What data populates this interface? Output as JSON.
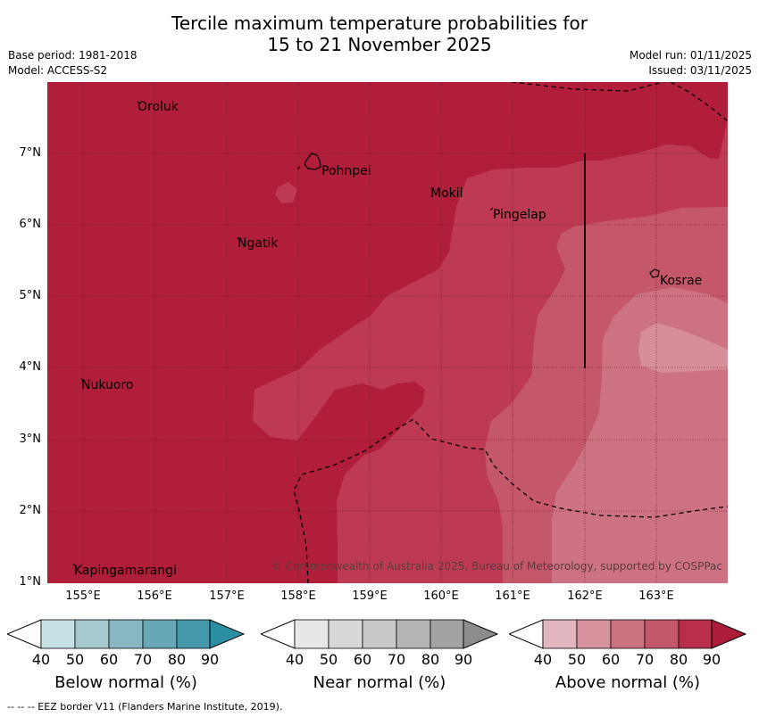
{
  "title": {
    "line1": "Tercile maximum temperature probabilities for",
    "line2": "15 to 21 November 2025"
  },
  "meta_left": {
    "base_period": "Base period: 1981-2018",
    "model": "Model: ACCESS-S2"
  },
  "meta_right": {
    "model_run": "Model run: 01/11/2025",
    "issued": "Issued: 03/11/2025"
  },
  "map": {
    "x_ticks": [
      "155°E",
      "156°E",
      "157°E",
      "158°E",
      "159°E",
      "160°E",
      "161°E",
      "162°E",
      "163°E"
    ],
    "y_ticks": [
      "7°N",
      "6°N",
      "5°N",
      "4°N",
      "3°N",
      "2°N",
      "1°N"
    ],
    "places": [
      {
        "name": "Oroluk"
      },
      {
        "name": "Pohnpei"
      },
      {
        "name": "Mokil"
      },
      {
        "name": "Pingelap"
      },
      {
        "name": "Ngatik"
      },
      {
        "name": "Kosrae"
      },
      {
        "name": "Nukuoro"
      },
      {
        "name": "Kapingamarangi"
      }
    ],
    "copyright": "© Commonwealth of Australia 2025, Bureau of Meteorology, supported by COSPPac",
    "colors": {
      "above_80_90": "#b01e3a",
      "above_70_80": "#bd3a52",
      "above_60_70": "#c4576a",
      "above_50_60": "#cc7282",
      "above_40_50": "#d58e9a"
    }
  },
  "colorbars": {
    "below": {
      "title": "Below normal (%)",
      "ticks": [
        "40",
        "50",
        "60",
        "70",
        "80",
        "90"
      ],
      "colors": [
        "#c8e1e7",
        "#a7c9d0",
        "#89b7c1",
        "#66a8b5",
        "#4599ab",
        "#2b8ea3"
      ]
    },
    "near": {
      "title": "Near normal (%)",
      "ticks": [
        "40",
        "50",
        "60",
        "70",
        "80",
        "90"
      ],
      "colors": [
        "#e7e7e7",
        "#d8d8d8",
        "#c9c9c9",
        "#b5b5b5",
        "#a3a3a3",
        "#8c8c8c"
      ]
    },
    "above": {
      "title": "Above normal (%)",
      "ticks": [
        "40",
        "50",
        "60",
        "70",
        "80",
        "90"
      ],
      "colors": [
        "#e1b6be",
        "#d6929d",
        "#cc7381",
        "#c3586a",
        "#b92f4b",
        "#ad1d39"
      ]
    }
  },
  "footnote": "--  --  -- EEZ border V11 (Flanders Marine Institute, 2019)."
}
